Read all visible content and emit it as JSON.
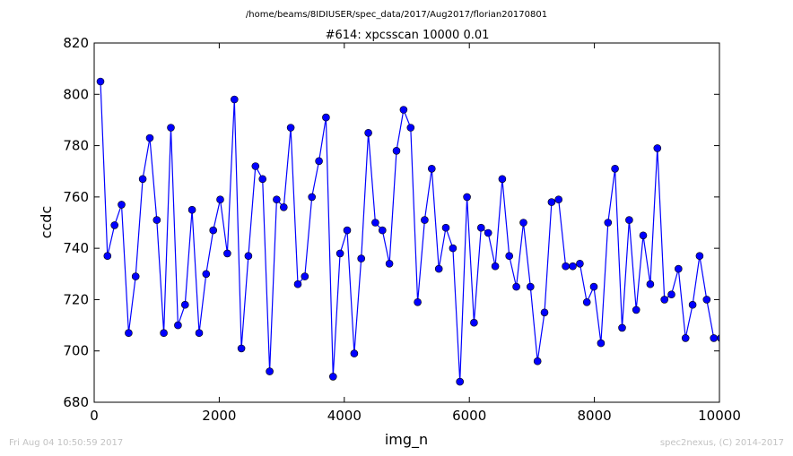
{
  "suptitle": "/home/beams/8IDIUSER/spec_data/2017/Aug2017/florian20170801",
  "footer": {
    "left": "Fri Aug 04 10:50:59 2017",
    "right": "spec2nexus, (C) 2014-2017"
  },
  "chart_data": {
    "type": "line",
    "title": "#614: xpcsscan 10000 0.01",
    "xlabel": "img_n",
    "ylabel": "ccdc",
    "xlim": [
      0,
      10000
    ],
    "ylim": [
      680,
      820
    ],
    "xticks": [
      0,
      2000,
      4000,
      6000,
      8000,
      10000
    ],
    "yticks": [
      680,
      700,
      720,
      740,
      760,
      780,
      800,
      820
    ],
    "grid": false,
    "legend": "none",
    "colors": {
      "line": "#0000ff",
      "marker": "#0000ff",
      "marker_edge": "#000000"
    },
    "series": [
      {
        "x": [
          100,
          212,
          325,
          438,
          551,
          663,
          776,
          889,
          1002,
          1114,
          1227,
          1340,
          1453,
          1565,
          1678,
          1791,
          1904,
          2016,
          2129,
          2242,
          2355,
          2467,
          2580,
          2693,
          2806,
          2918,
          3031,
          3144,
          3257,
          3369,
          3482,
          3595,
          3708,
          3820,
          3933,
          4046,
          4159,
          4271,
          4384,
          4497,
          4610,
          4722,
          4835,
          4948,
          5061,
          5173,
          5286,
          5399,
          5512,
          5624,
          5737,
          5850,
          5963,
          6075,
          6188,
          6301,
          6414,
          6526,
          6639,
          6752,
          6865,
          6977,
          7090,
          7203,
          7316,
          7428,
          7541,
          7654,
          7767,
          7879,
          7992,
          8105,
          8218,
          8330,
          8443,
          8556,
          8669,
          8781,
          8894,
          9007,
          9120,
          9232,
          9345,
          9458,
          9571,
          9683,
          9796,
          9909,
          10022
        ],
        "y": [
          805,
          737,
          749,
          757,
          707,
          729,
          767,
          783,
          751,
          707,
          787,
          710,
          718,
          755,
          707,
          730,
          747,
          759,
          738,
          798,
          701,
          737,
          772,
          767,
          692,
          759,
          756,
          787,
          726,
          729,
          760,
          774,
          791,
          690,
          738,
          747,
          699,
          736,
          785,
          750,
          747,
          734,
          778,
          794,
          787,
          719,
          751,
          771,
          732,
          748,
          740,
          688,
          760,
          711,
          748,
          746,
          733,
          767,
          737,
          725,
          750,
          725,
          696,
          715,
          758,
          759,
          733,
          733,
          734,
          719,
          725,
          703,
          750,
          771,
          709,
          751,
          716,
          745,
          726,
          779,
          720,
          722,
          732,
          705,
          718,
          737,
          720,
          705,
          705
        ]
      }
    ]
  }
}
